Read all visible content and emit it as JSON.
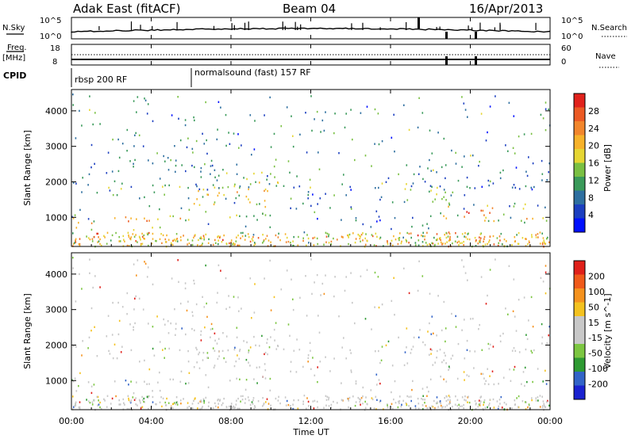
{
  "header": {
    "station": "Adak East (fitACF)",
    "beam": "Beam 04",
    "date": "16/Apr/2013"
  },
  "sky_panel": {
    "left_label": "N.Sky",
    "left_ticks": [
      "10^5",
      "10^0"
    ],
    "right_ticks": [
      "10^5",
      "10^0"
    ],
    "right_label": "N.Search"
  },
  "freq_panel": {
    "left_label": "Freq.",
    "left_unit": "[MHz]",
    "left_ticks": [
      "18",
      "8"
    ],
    "right_ticks": [
      "60",
      "0"
    ],
    "right_label": "Nave"
  },
  "cpid": {
    "label": "CPID",
    "segments": [
      {
        "name": "rbsp 200 RF",
        "start_hour": 0
      },
      {
        "name": "normalsound (fast) 157 RF",
        "start_hour": 6
      }
    ]
  },
  "chart_data": [
    {
      "type": "heatmap",
      "ylabel": "Slant Range [km]",
      "yticks": [
        1000,
        2000,
        3000,
        4000
      ],
      "ylim": [
        180,
        4600
      ],
      "xlabel": "Time UT",
      "xticks": [
        "00:00",
        "04:00",
        "08:00",
        "12:00",
        "16:00",
        "20:00",
        "00:00"
      ],
      "xlim_hours": [
        0,
        24
      ],
      "colorbar": {
        "label": "Power [dB]",
        "ticks": [
          "4",
          "8",
          "12",
          "16",
          "20",
          "24",
          "28"
        ],
        "colors": [
          "#0010ff",
          "#1c3fc0",
          "#2e6fa0",
          "#3a9a5a",
          "#7ac043",
          "#e6d633",
          "#f7b22a",
          "#f2862c",
          "#ec5a24",
          "#e1221c"
        ]
      },
      "echo_bands": [
        {
          "t0": 0,
          "t1": 6,
          "r0": 700,
          "r1": 1100,
          "level": 0.88
        },
        {
          "t0": 6,
          "t1": 10.5,
          "r0": 1000,
          "r1": 2300,
          "level": 0.7
        },
        {
          "t0": 1,
          "t1": 10,
          "r0": 1550,
          "r1": 2000,
          "level": 0.5
        },
        {
          "t0": 1.5,
          "t1": 8.5,
          "r0": 2200,
          "r1": 3400,
          "level": 0.3
        },
        {
          "t0": 11,
          "t1": 16,
          "r0": 900,
          "r1": 1900,
          "level": 0.22
        },
        {
          "t0": 15.5,
          "t1": 19,
          "r0": 1300,
          "r1": 2300,
          "level": 0.45
        },
        {
          "t0": 18.5,
          "t1": 24,
          "r0": 900,
          "r1": 1400,
          "level": 0.9
        },
        {
          "t0": 17,
          "t1": 24,
          "r0": 1700,
          "r1": 2800,
          "level": 0.22
        }
      ]
    },
    {
      "type": "heatmap",
      "ylabel": "Slant Range [km]",
      "yticks": [
        1000,
        2000,
        3000,
        4000
      ],
      "ylim": [
        180,
        4600
      ],
      "xlabel": "Time UT",
      "xticks": [
        "00:00",
        "04:00",
        "08:00",
        "12:00",
        "16:00",
        "20:00",
        "00:00"
      ],
      "xlim_hours": [
        0,
        24
      ],
      "colorbar": {
        "label": "Velocity [m s^-1]",
        "ticks": [
          "200",
          "100",
          "50",
          "15",
          "-15",
          "-50",
          "-100",
          "-200"
        ],
        "colors": [
          "#1a22d0",
          "#3264c8",
          "#2e9a32",
          "#7cc641",
          "#c8c8c8",
          "#c8c8c8",
          "#f4c21f",
          "#f5921e",
          "#f05a1a",
          "#e0201a"
        ]
      }
    }
  ]
}
